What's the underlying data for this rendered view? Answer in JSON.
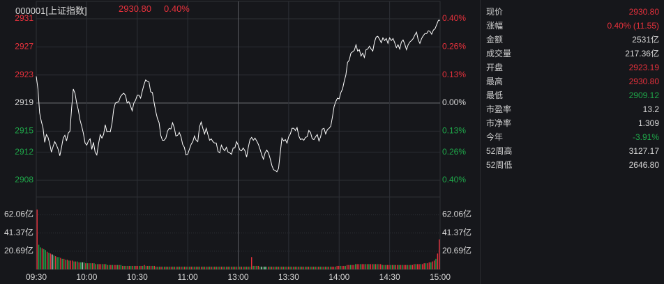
{
  "header": {
    "symbol": "000001[上证指数]",
    "price": "2930.80",
    "change_pct": "0.40%"
  },
  "colors": {
    "up": "#e8313c",
    "down": "#1fa84a",
    "neutral": "#d8d8d8",
    "grid": "#2e3036",
    "line": "#ffffff",
    "background": "#16171b"
  },
  "info": [
    {
      "label": "现价",
      "value": "2930.80",
      "color": "red"
    },
    {
      "label": "涨幅",
      "value": "0.40% (11.55)",
      "color": "red"
    },
    {
      "label": "金额",
      "value": "2531亿",
      "color": "white"
    },
    {
      "label": "成交量",
      "value": "217.36亿",
      "color": "white"
    },
    {
      "label": "开盘",
      "value": "2923.19",
      "color": "red"
    },
    {
      "label": "最高",
      "value": "2930.80",
      "color": "red"
    },
    {
      "label": "最低",
      "value": "2909.12",
      "color": "green"
    },
    {
      "label": "市盈率",
      "value": "13.2",
      "color": "white"
    },
    {
      "label": "市净率",
      "value": "1.309",
      "color": "white"
    },
    {
      "label": "今年",
      "value": "-3.91%",
      "color": "green"
    },
    {
      "label": "52周高",
      "value": "3127.17",
      "color": "white"
    },
    {
      "label": "52周低",
      "value": "2646.80",
      "color": "white"
    }
  ],
  "chart_data": {
    "type": "line",
    "price_ticks": [
      {
        "label": "2931",
        "value": 2931,
        "color": "red"
      },
      {
        "label": "2927",
        "value": 2927,
        "color": "red"
      },
      {
        "label": "2923",
        "value": 2923,
        "color": "red"
      },
      {
        "label": "2919",
        "value": 2919,
        "color": "white"
      },
      {
        "label": "2915",
        "value": 2915,
        "color": "green"
      },
      {
        "label": "2912",
        "value": 2912,
        "color": "green"
      },
      {
        "label": "2908",
        "value": 2908,
        "color": "green"
      }
    ],
    "pct_ticks": [
      {
        "label": "0.40%",
        "value": 2931,
        "color": "red"
      },
      {
        "label": "0.26%",
        "value": 2927,
        "color": "red"
      },
      {
        "label": "0.13%",
        "value": 2923,
        "color": "red"
      },
      {
        "label": "0.00%",
        "value": 2919,
        "color": "white"
      },
      {
        "label": "0.13%",
        "value": 2915,
        "color": "green"
      },
      {
        "label": "0.26%",
        "value": 2912,
        "color": "green"
      },
      {
        "label": "0.40%",
        "value": 2908,
        "color": "green"
      }
    ],
    "volume_ticks": [
      {
        "label": "62.06亿",
        "value": 62.06
      },
      {
        "label": "41.37亿",
        "value": 41.37
      },
      {
        "label": "20.69亿",
        "value": 20.69
      }
    ],
    "time_ticks": [
      "09:30",
      "10:00",
      "10:30",
      "11:00",
      "13:00",
      "13:30",
      "14:00",
      "14:30",
      "15:00"
    ],
    "price_range": [
      2907.3,
      2931.5
    ],
    "volume_max": 72,
    "price_points": [
      2922.8,
      2921.0,
      2917.6,
      2916.4,
      2915.5,
      2913.4,
      2914.5,
      2914.1,
      2913.2,
      2912.0,
      2912.8,
      2913.5,
      2913.0,
      2912.4,
      2911.5,
      2912.7,
      2914.0,
      2914.4,
      2913.6,
      2914.7,
      2915.0,
      2918.3,
      2921.0,
      2920.4,
      2919.0,
      2918.0,
      2916.6,
      2915.7,
      2914.7,
      2913.3,
      2913.0,
      2913.6,
      2913.9,
      2912.4,
      2913.4,
      2912.0,
      2911.6,
      2913.2,
      2914.5,
      2914.0,
      2914.5,
      2915.9,
      2914.9,
      2915.0,
      2914.9,
      2916.1,
      2918.1,
      2919.0,
      2919.1,
      2919.2,
      2919.9,
      2920.2,
      2920.4,
      2920.1,
      2919.0,
      2919.2,
      2918.6,
      2917.9,
      2919.0,
      2919.4,
      2920.1,
      2920.1,
      2919.7,
      2920.7,
      2921.6,
      2922.3,
      2922.1,
      2922.0,
      2920.6,
      2920.5,
      2919.1,
      2917.8,
      2916.8,
      2916.2,
      2914.4,
      2913.7,
      2913.7,
      2914.0,
      2915.0,
      2915.4,
      2915.3,
      2916.2,
      2915.5,
      2914.3,
      2914.4,
      2914.8,
      2914.2,
      2913.1,
      2912.7,
      2911.6,
      2911.7,
      2912.4,
      2913.1,
      2913.5,
      2914.3,
      2913.7,
      2913.5,
      2915.6,
      2916.3,
      2915.4,
      2914.6,
      2915.4,
      2914.5,
      2913.7,
      2913.9,
      2913.5,
      2913.3,
      2913.3,
      2912.1,
      2911.9,
      2913.0,
      2912.5,
      2912.2,
      2912.7,
      2912.0,
      2911.9,
      2911.7,
      2912.6,
      2912.6,
      2913.5,
      2913.0,
      2912.3,
      2912.2,
      2912.6,
      2912.2,
      2911.3,
      2912.7,
      2913.8,
      2914.1,
      2913.7,
      2914.0,
      2913.6,
      2913.1,
      2912.4,
      2911.6,
      2911.0,
      2911.9,
      2912.3,
      2911.9,
      2911.1,
      2910.1,
      2909.5,
      2909.4,
      2909.2,
      2909.7,
      2911.9,
      2914.0,
      2913.6,
      2913.8,
      2913.3,
      2914.2,
      2914.6,
      2915.4,
      2915.4,
      2915.1,
      2915.5,
      2914.3,
      2913.8,
      2913.9,
      2913.7,
      2914.1,
      2914.2,
      2915.1,
      2914.8,
      2913.9,
      2913.8,
      2914.2,
      2914.5,
      2913.6,
      2914.2,
      2915.3,
      2915.4,
      2914.6,
      2915.2,
      2915.4,
      2915.7,
      2917.0,
      2918.5,
      2919.2,
      2919.7,
      2919.6,
      2920.5,
      2921.0,
      2922.1,
      2923.0,
      2924.8,
      2925.1,
      2926.1,
      2926.3,
      2926.5,
      2927.3,
      2926.4,
      2926.6,
      2925.7,
      2926.1,
      2925.5,
      2926.6,
      2926.7,
      2927.1,
      2926.7,
      2926.4,
      2927.7,
      2928.4,
      2928.5,
      2928.1,
      2927.6,
      2928.3,
      2927.9,
      2928.2,
      2927.5,
      2928.3,
      2927.9,
      2928.2,
      2927.6,
      2926.9,
      2927.3,
      2926.7,
      2927.7,
      2928.0,
      2927.4,
      2926.6,
      2927.3,
      2927.7,
      2927.9,
      2928.2,
      2928.7,
      2929.1,
      2928.0,
      2927.5,
      2928.2,
      2928.6,
      2928.9,
      2928.9,
      2929.3,
      2929.2,
      2928.8,
      2929.4,
      2929.6,
      2930.2,
      2930.8,
      2930.8
    ],
    "volume_points": [
      68,
      28,
      25,
      24,
      23,
      22,
      20,
      19,
      18,
      17,
      16,
      15,
      14,
      14,
      13,
      12,
      12,
      11,
      11,
      10,
      10,
      10,
      9,
      9,
      9,
      8,
      8,
      8,
      8,
      7,
      7,
      7,
      7,
      7,
      7,
      6,
      6,
      6,
      6,
      6,
      6,
      6,
      5,
      5,
      5,
      5,
      5,
      5,
      5,
      5,
      5,
      4,
      4,
      4,
      4,
      4,
      4,
      4,
      4,
      4,
      4,
      4,
      4,
      4,
      5,
      4,
      4,
      4,
      4,
      4,
      4,
      3,
      3,
      3,
      3,
      3,
      3,
      3,
      3,
      3,
      3,
      3,
      3,
      3,
      3,
      3,
      3,
      3,
      3,
      3,
      3,
      3,
      3,
      3,
      3,
      3,
      3,
      3,
      3,
      3,
      3,
      3,
      3,
      3,
      3,
      3,
      3,
      3,
      3,
      3,
      3,
      3,
      3,
      3,
      3,
      3,
      3,
      3,
      3,
      3,
      3,
      3,
      3,
      3,
      3,
      3,
      3,
      3,
      14,
      4,
      4,
      4,
      4,
      3,
      3,
      3,
      3,
      3,
      3,
      3,
      3,
      3,
      3,
      3,
      3,
      3,
      3,
      3,
      3,
      3,
      3,
      3,
      3,
      3,
      3,
      3,
      3,
      3,
      3,
      3,
      3,
      3,
      3,
      3,
      3,
      3,
      3,
      3,
      3,
      3,
      3,
      3,
      3,
      3,
      3,
      3,
      3,
      3,
      3,
      4,
      4,
      4,
      4,
      4,
      4,
      5,
      5,
      5,
      5,
      5,
      6,
      6,
      6,
      6,
      6,
      6,
      6,
      6,
      6,
      6,
      6,
      6,
      6,
      6,
      6,
      6,
      5,
      5,
      5,
      5,
      5,
      5,
      5,
      5,
      5,
      5,
      5,
      5,
      5,
      5,
      5,
      5,
      5,
      5,
      5,
      6,
      6,
      6,
      6,
      6,
      6,
      7,
      7,
      7,
      8,
      8,
      9,
      10,
      12,
      18,
      34
    ],
    "volume_colors": [
      "r",
      "g",
      "g",
      "r",
      "g",
      "g",
      "r",
      "g",
      "r",
      "w",
      "g",
      "r",
      "g",
      "g",
      "r",
      "g",
      "r",
      "g",
      "r",
      "g",
      "r",
      "r",
      "g",
      "r",
      "g",
      "r",
      "g",
      "w",
      "g",
      "r",
      "g",
      "r",
      "g",
      "r",
      "g",
      "r",
      "g",
      "r",
      "r",
      "g",
      "r",
      "g",
      "r",
      "g",
      "r",
      "g",
      "r",
      "r",
      "g",
      "r",
      "g",
      "r",
      "g",
      "r",
      "g",
      "r",
      "g",
      "r",
      "g",
      "r",
      "r",
      "g",
      "r",
      "g",
      "r",
      "g",
      "r",
      "g",
      "r",
      "g",
      "r",
      "g",
      "r",
      "g",
      "r",
      "g",
      "r",
      "g",
      "r",
      "g",
      "r",
      "g",
      "r",
      "g",
      "r",
      "g",
      "r",
      "g",
      "r",
      "g",
      "r",
      "g",
      "r",
      "g",
      "r",
      "g",
      "r",
      "g",
      "r",
      "g",
      "r",
      "g",
      "r",
      "g",
      "r",
      "g",
      "r",
      "g",
      "r",
      "g",
      "r",
      "g",
      "r",
      "g",
      "r",
      "g",
      "r",
      "g",
      "r",
      "g",
      "r",
      "g",
      "r",
      "g",
      "r",
      "g",
      "r",
      "g",
      "r",
      "g",
      "r",
      "g",
      "r",
      "g",
      "w",
      "g",
      "w",
      "g",
      "r",
      "g",
      "r",
      "g",
      "r",
      "g",
      "r",
      "g",
      "r",
      "g",
      "r",
      "g",
      "r",
      "g",
      "r",
      "g",
      "r",
      "g",
      "r",
      "g",
      "r",
      "g",
      "r",
      "g",
      "r",
      "g",
      "r",
      "g",
      "r",
      "g",
      "r",
      "g",
      "r",
      "g",
      "r",
      "g",
      "r",
      "g",
      "r",
      "r",
      "g",
      "r",
      "r",
      "g",
      "r",
      "r",
      "g",
      "r",
      "r",
      "g",
      "r",
      "r",
      "g",
      "r",
      "r",
      "g",
      "r",
      "r",
      "g",
      "r",
      "g",
      "r",
      "r",
      "g",
      "r",
      "g",
      "r",
      "r",
      "g",
      "r",
      "g",
      "r",
      "r",
      "g",
      "r",
      "g",
      "r",
      "r",
      "g",
      "r",
      "g",
      "r",
      "r",
      "g",
      "r",
      "g",
      "r",
      "r",
      "g",
      "r",
      "r",
      "g",
      "r",
      "r",
      "g",
      "r",
      "r",
      "g",
      "r",
      "r",
      "g",
      "r",
      "r"
    ]
  }
}
